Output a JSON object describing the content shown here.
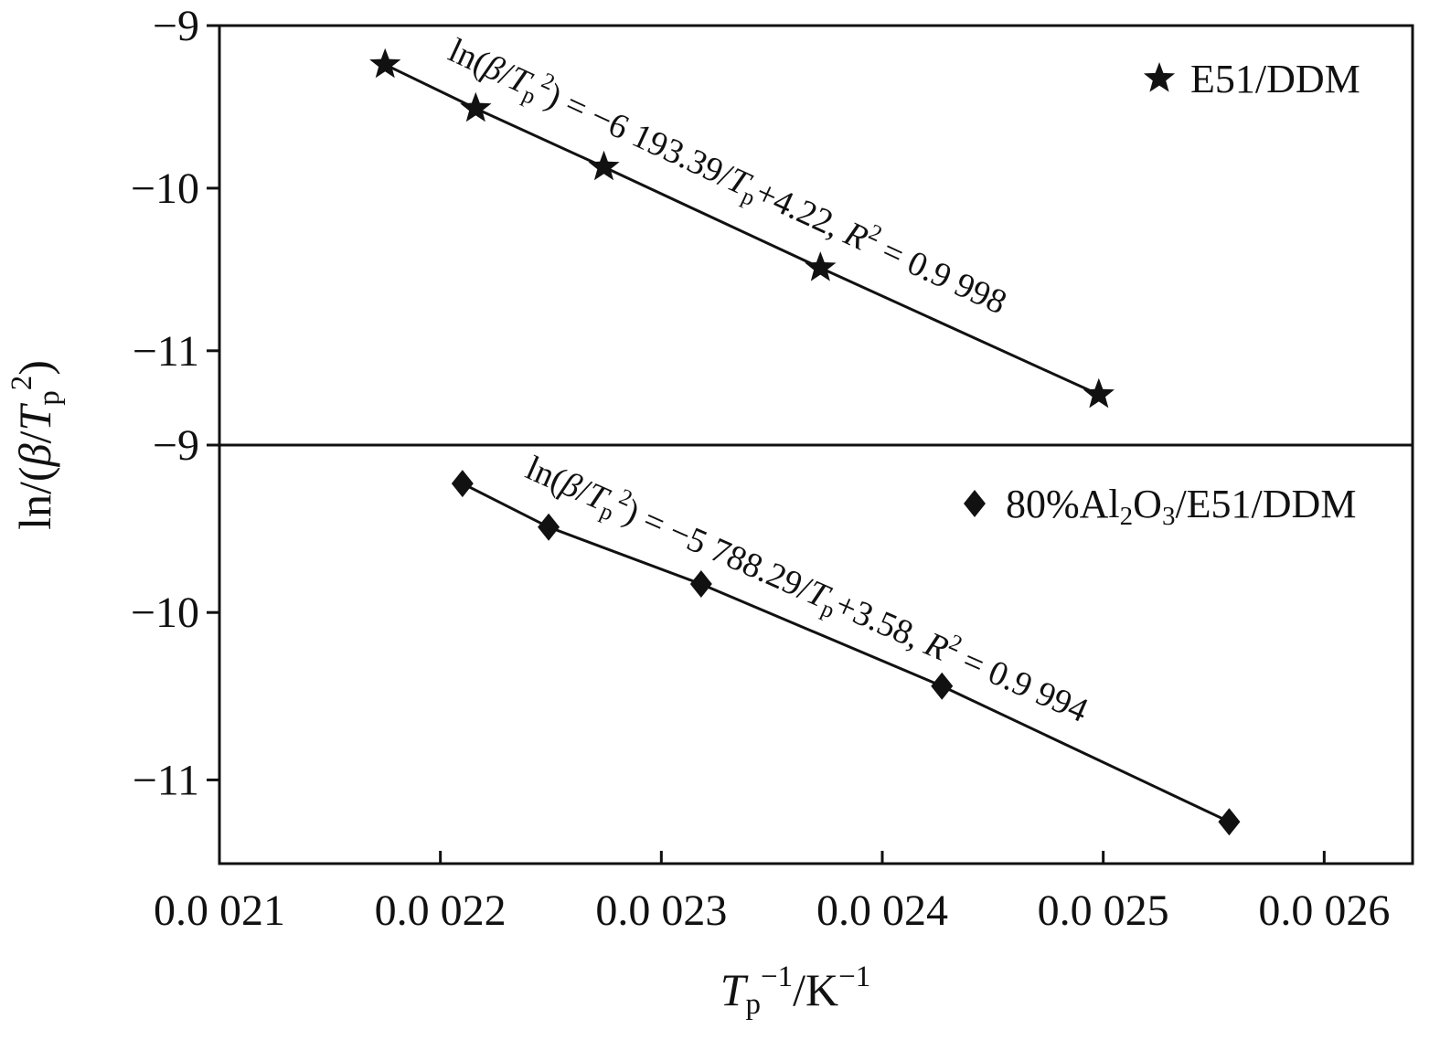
{
  "style": {
    "fg": "#111111",
    "bg": "#ffffff"
  },
  "axes": {
    "xlim": [
      0.0021,
      0.00264
    ],
    "xticks": [
      0.0021,
      0.0022,
      0.0023,
      0.0024,
      0.0025,
      0.0026
    ],
    "xtick_labels": [
      "0.0 021",
      "0.0 022",
      "0.0 023",
      "0.0 024",
      "0.0 025",
      "0.0 026"
    ],
    "xlabel_segments": [
      {
        "t": "T",
        "s": "i"
      },
      {
        "t": "p",
        "s": "sub"
      },
      {
        "t": "−1",
        "s": "sup"
      },
      {
        "t": "/K",
        "s": "n"
      },
      {
        "t": "−1",
        "s": "sup"
      }
    ],
    "ylabel_segments": [
      {
        "t": "ln/(",
        "s": "n"
      },
      {
        "t": "β",
        "s": "i"
      },
      {
        "t": "/",
        "s": "n"
      },
      {
        "t": "T",
        "s": "i"
      },
      {
        "t": "p",
        "s": "sub"
      },
      {
        "t": "2",
        "s": "sup"
      },
      {
        "t": ")",
        "s": "n"
      }
    ]
  },
  "chart_data": [
    {
      "type": "scatter",
      "panel": "top",
      "xlim": [
        0.0021,
        0.00264
      ],
      "ylim": [
        -11.58,
        -9
      ],
      "yticks": [
        -9,
        -10,
        -11
      ],
      "ytick_labels": [
        "−9",
        "−10",
        "−11"
      ],
      "series": [
        {
          "name": "E51/DDM",
          "marker": "star",
          "x": [
            0.002175,
            0.002216,
            0.002274,
            0.002372,
            0.002498
          ],
          "y": [
            -9.24,
            -9.51,
            -9.87,
            -10.49,
            -11.27
          ]
        }
      ],
      "fit": {
        "slope": -6193.39,
        "intercept": 4.22,
        "r_squared": "0.9 998"
      },
      "equation_segments": [
        {
          "t": "ln(",
          "s": "n"
        },
        {
          "t": "β",
          "s": "i"
        },
        {
          "t": "/",
          "s": "n"
        },
        {
          "t": "T",
          "s": "i"
        },
        {
          "t": "p",
          "s": "sub"
        },
        {
          "t": "2",
          "s": "sup"
        },
        {
          "t": ") = −6 193.39/",
          "s": "n"
        },
        {
          "t": "T",
          "s": "i"
        },
        {
          "t": "p",
          "s": "sub"
        },
        {
          "t": "+4.22, ",
          "s": "n"
        },
        {
          "t": "R",
          "s": "i"
        },
        {
          "t": "2",
          "s": "sup"
        },
        {
          "t": " = 0.9 998",
          "s": "n"
        }
      ],
      "legend_marker": "star",
      "legend_segments": [
        {
          "t": "E51/DDM",
          "s": "n"
        }
      ],
      "legend_position": "upper right"
    },
    {
      "type": "scatter",
      "panel": "bottom",
      "xlim": [
        0.0021,
        0.00264
      ],
      "ylim": [
        -11.5,
        -9
      ],
      "yticks": [
        -9,
        -10,
        -11
      ],
      "ytick_labels": [
        "−9",
        "−10",
        "−11"
      ],
      "series": [
        {
          "name": "80%Al2O3/E51/DDM",
          "marker": "diamond",
          "x": [
            0.00221,
            0.002249,
            0.002318,
            0.002427,
            0.002557
          ],
          "y": [
            -9.23,
            -9.49,
            -9.83,
            -10.44,
            -11.25
          ]
        }
      ],
      "fit": {
        "slope": -5788.29,
        "intercept": 3.58,
        "r_squared": "0.9 994"
      },
      "equation_segments": [
        {
          "t": "ln(",
          "s": "n"
        },
        {
          "t": "β",
          "s": "i"
        },
        {
          "t": "/",
          "s": "n"
        },
        {
          "t": "T",
          "s": "i"
        },
        {
          "t": "p",
          "s": "sub"
        },
        {
          "t": "2",
          "s": "sup"
        },
        {
          "t": ") = −5 788.29/",
          "s": "n"
        },
        {
          "t": "T",
          "s": "i"
        },
        {
          "t": "p",
          "s": "sub"
        },
        {
          "t": "+3.58, ",
          "s": "n"
        },
        {
          "t": "R",
          "s": "i"
        },
        {
          "t": "2",
          "s": "sup"
        },
        {
          "t": " = 0.9 994",
          "s": "n"
        }
      ],
      "legend_marker": "diamond",
      "legend_segments": [
        {
          "t": "80%Al",
          "s": "n"
        },
        {
          "t": "2",
          "s": "sub"
        },
        {
          "t": "O",
          "s": "n"
        },
        {
          "t": "3",
          "s": "sub"
        },
        {
          "t": "/E51/DDM",
          "s": "n"
        }
      ],
      "legend_position": "upper right"
    }
  ]
}
